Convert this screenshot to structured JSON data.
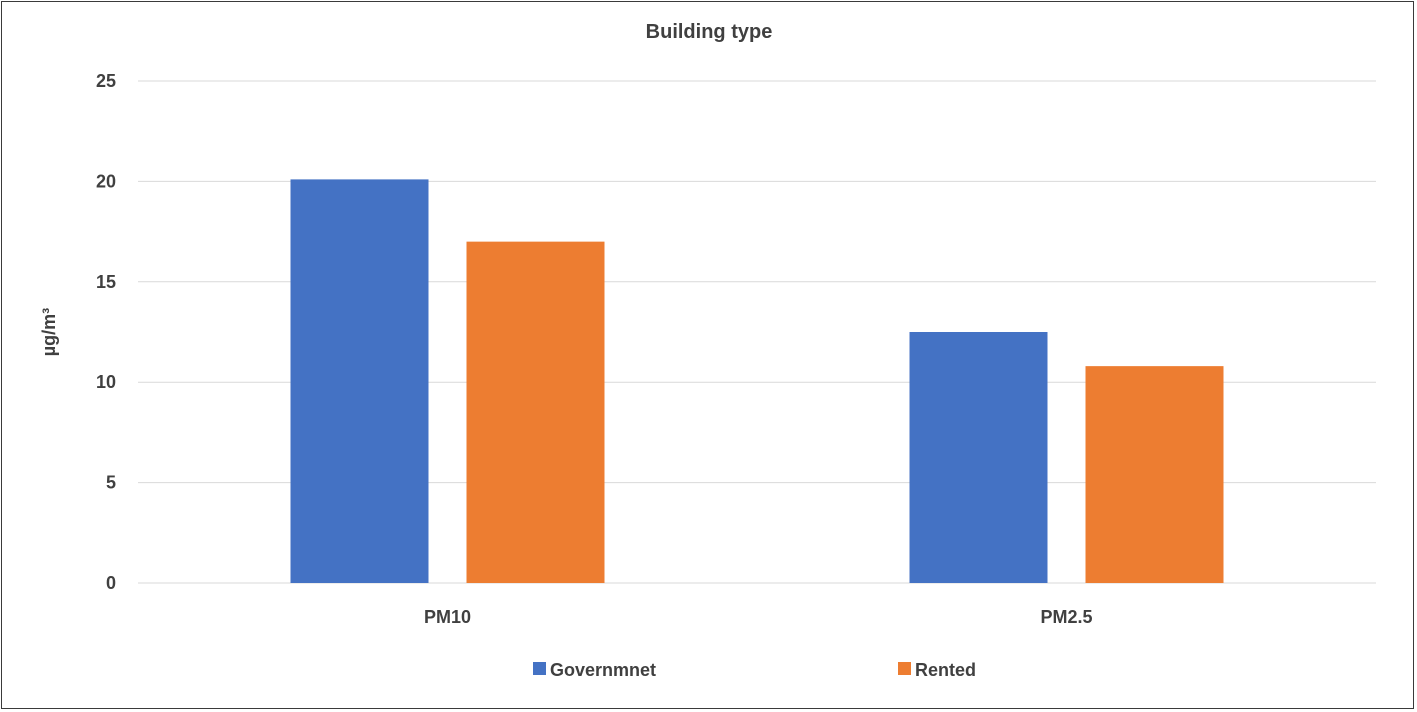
{
  "chart_data": {
    "type": "bar",
    "title": "Building type",
    "ylabel": "µg/m³",
    "xlabel": "",
    "categories": [
      "PM10",
      "PM2.5"
    ],
    "ylim": [
      0,
      25
    ],
    "yticks": [
      0,
      5,
      10,
      15,
      20,
      25
    ],
    "grid": true,
    "legend_position": "bottom",
    "series": [
      {
        "name": "Governmnet",
        "values": [
          20.1,
          12.5
        ],
        "color": "#4472C4"
      },
      {
        "name": "Rented",
        "values": [
          17.0,
          10.8
        ],
        "color": "#ED7D31"
      }
    ]
  }
}
